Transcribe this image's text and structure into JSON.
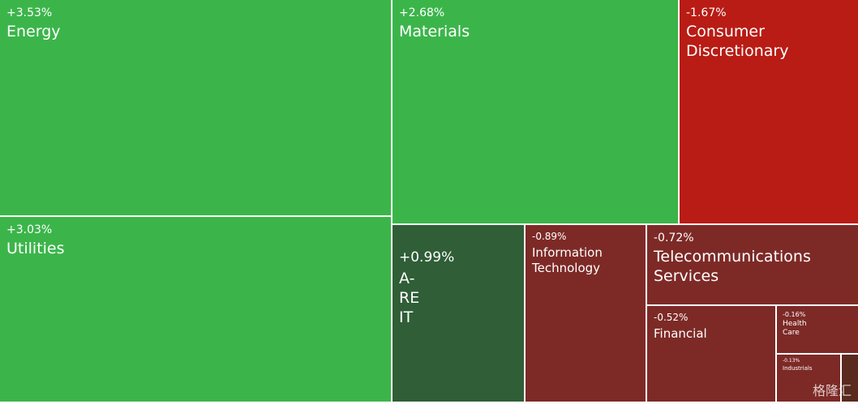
{
  "chart_data": {
    "type": "treemap",
    "categories": [
      "Energy",
      "Utilities",
      "Materials",
      "Consumer Discretionary",
      "A-REIT",
      "Information Technology",
      "Telecommunications Services",
      "Financial",
      "Health Care",
      "Industrials"
    ],
    "values": [
      3.53,
      3.03,
      2.68,
      -1.67,
      0.99,
      -0.89,
      -0.72,
      -0.52,
      -0.16,
      -0.13
    ],
    "value_labels": [
      "+3.53%",
      "+3.03%",
      "+2.68%",
      "-1.67%",
      "+0.99%",
      "-0.89%",
      "-0.72%",
      "-0.52%",
      "-0.16%",
      "-0.13%"
    ],
    "colors": [
      "#3bb54a",
      "#3bb54a",
      "#3bb54a",
      "#b81c15",
      "#2f5e37",
      "#7d2a27",
      "#7d2a27",
      "#7d2a27",
      "#7d2a27",
      "#7d2a27"
    ],
    "watermark": "格隆汇"
  }
}
